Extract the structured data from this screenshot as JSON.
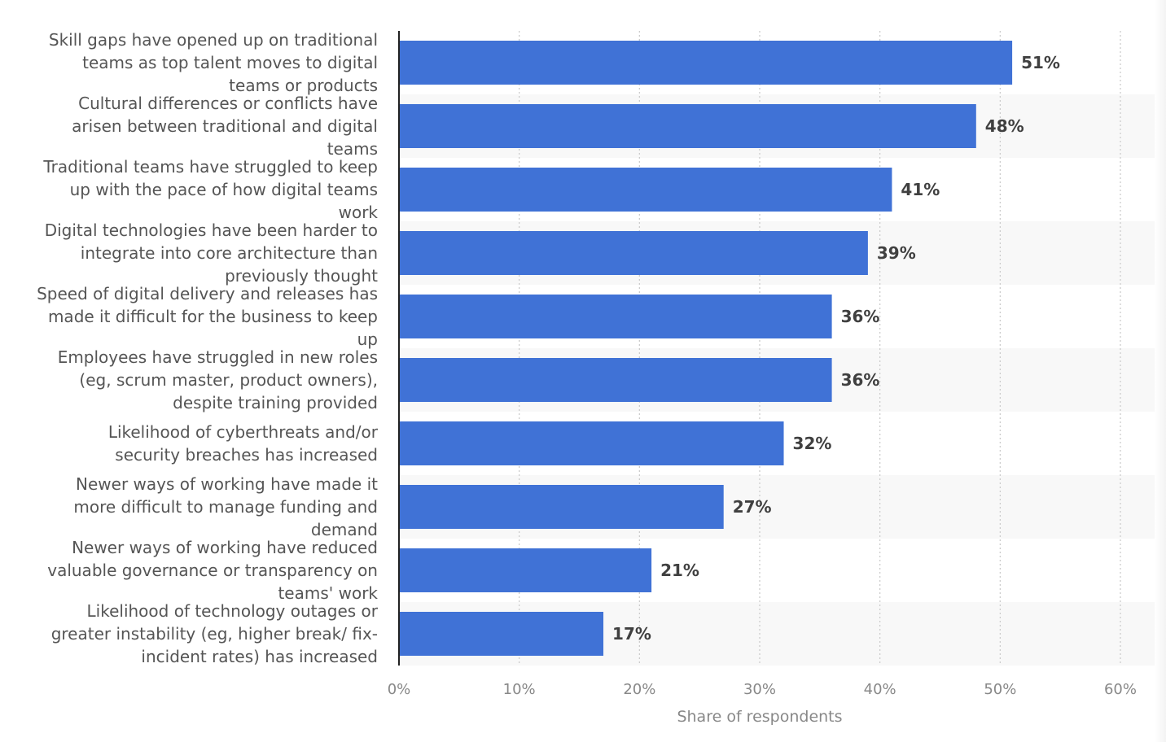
{
  "chart_data": {
    "type": "bar",
    "orientation": "horizontal",
    "categories": [
      "Skill gaps have opened up on traditional teams as top talent moves to digital teams or products",
      "Cultural differences or conflicts have arisen between traditional and digital teams",
      "Traditional teams have struggled to keep up with the pace of how digital teams work",
      "Digital technologies have been harder to integrate into core architecture than previously thought",
      "Speed of digital delivery and releases has made it difficult for the business to keep up",
      "Employees have struggled in new roles (eg, scrum master, product owners), despite training provided",
      "Likelihood of cyberthreats and/or security breaches has increased",
      "Newer ways of working have made it more difficult to manage funding and demand",
      "Newer ways of working have reduced valuable governance or transparency on teams' work",
      "Likelihood of technology outages or greater instability (eg, higher break/ fix-incident rates) has increased"
    ],
    "category_label_lines": [
      [
        "Skill gaps have opened up on traditional",
        "teams as top talent moves to digital",
        "teams or products"
      ],
      [
        "Cultural differences or conflicts have",
        "arisen between traditional and digital",
        "teams"
      ],
      [
        "Traditional teams have struggled to keep",
        "up with the pace of how digital teams",
        "work"
      ],
      [
        "Digital technologies have been harder to",
        "integrate into core architecture than",
        "previously thought"
      ],
      [
        "Speed of digital delivery and releases has",
        "made it difficult for the business to keep",
        "up"
      ],
      [
        "Employees have struggled in new roles",
        "(eg, scrum master, product owners),",
        "despite training provided"
      ],
      [
        "Likelihood of cyberthreats and/or",
        "security breaches has increased"
      ],
      [
        "Newer ways of working have made it",
        "more difficult to manage funding and",
        "demand"
      ],
      [
        "Newer ways of working have reduced",
        "valuable governance or transparency on",
        "teams' work"
      ],
      [
        "Likelihood of technology outages or",
        "greater instability (eg, higher break/ fix-",
        "incident rates) has increased"
      ]
    ],
    "values": [
      51,
      48,
      41,
      39,
      36,
      36,
      32,
      27,
      21,
      17
    ],
    "value_labels": [
      "51%",
      "48%",
      "41%",
      "39%",
      "36%",
      "36%",
      "32%",
      "27%",
      "21%",
      "17%"
    ],
    "xlim": [
      0,
      60
    ],
    "x_ticks": [
      0,
      10,
      20,
      30,
      40,
      50,
      60
    ],
    "x_tick_labels": [
      "0%",
      "10%",
      "20%",
      "30%",
      "40%",
      "50%",
      "60%"
    ],
    "xlabel": "Share of respondents",
    "ylabel": "",
    "title": "",
    "grid": true,
    "colors": {
      "bar": "#4072d6",
      "label_text": "#555555",
      "value_text": "#404040",
      "axis_text": "#888888",
      "grid": "#c9c9c9",
      "band": "#f8f8f8",
      "axis_line": "#222222"
    }
  }
}
